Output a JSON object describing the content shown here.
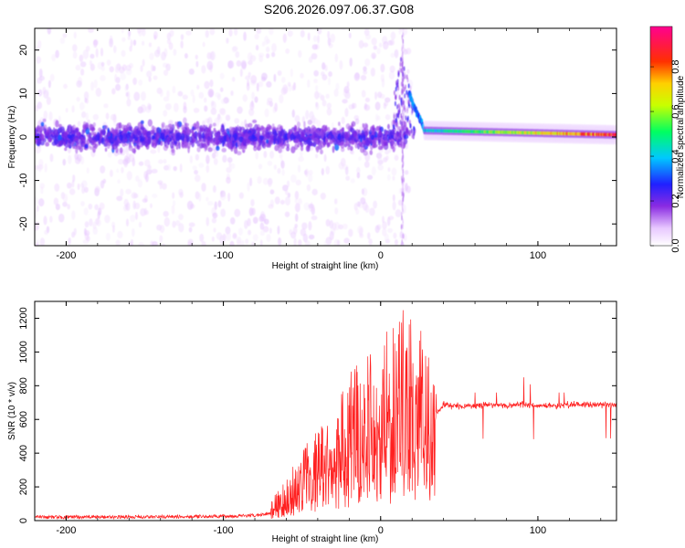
{
  "title": "S206.2026.097.06.37.G08",
  "chart_data": [
    {
      "type": "heatmap",
      "xlabel": "Height of straight line (km)",
      "ylabel": "Frequency (Hz)",
      "xlim": [
        -220,
        150
      ],
      "ylim": [
        -25,
        25
      ],
      "xticks": [
        -200,
        -100,
        0,
        100
      ],
      "yticks": [
        -20,
        -10,
        0,
        10,
        20
      ],
      "grid": false,
      "colorbar": {
        "label": "Normalized spectral amplitude",
        "range": [
          0,
          0.98
        ],
        "ticks": [
          0.0,
          0.2,
          0.4,
          0.6,
          0.8
        ],
        "colormap": "white-purple-blue-cyan-green-yellow-red-magenta"
      },
      "features": {
        "noise_band_center_hz": 0,
        "noise_band_width_hz": 8,
        "transition_km": [
          15,
          28
        ],
        "transition_peak_hz": 20,
        "carrier_freq_after_transition_hz": [
          1.5,
          0.5
        ],
        "carrier_amplitude_after_transition": [
          0.4,
          0.9
        ]
      }
    },
    {
      "type": "line",
      "xlabel": "Height of straight line (km)",
      "ylabel": "SNR (10 * v/v)",
      "xlim": [
        -220,
        150
      ],
      "ylim": [
        0,
        1300
      ],
      "xticks": [
        -200,
        -100,
        0,
        100
      ],
      "yticks": [
        0,
        200,
        400,
        600,
        800,
        1000,
        1200
      ],
      "grid": false,
      "color": "#ff2020",
      "x": [
        -220,
        -150,
        -100,
        -80,
        -70,
        -60,
        -50,
        -40,
        -30,
        -20,
        -10,
        0,
        10,
        20,
        30,
        35,
        40,
        50,
        60,
        70,
        80,
        90,
        100,
        110,
        120,
        130,
        140,
        150
      ],
      "y": [
        20,
        22,
        25,
        30,
        45,
        110,
        190,
        260,
        330,
        380,
        420,
        470,
        520,
        560,
        560,
        620,
        690,
        680,
        680,
        690,
        680,
        690,
        680,
        680,
        690,
        690,
        690,
        685
      ],
      "y_peak_envelope": [
        40,
        40,
        60,
        70,
        120,
        250,
        420,
        550,
        600,
        900,
        1000,
        1050,
        1250,
        1280,
        1050,
        750,
        760,
        760,
        760,
        760,
        760,
        860,
        760,
        760,
        760,
        760,
        760,
        760
      ]
    }
  ]
}
